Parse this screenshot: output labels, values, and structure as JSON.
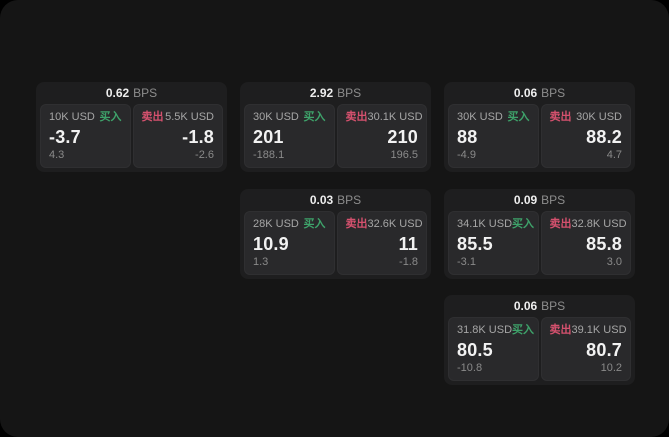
{
  "colors": {
    "buy": "#3EA26A",
    "sell": "#D5516E",
    "window_bg": "#151515",
    "card_bg": "#1e1e1f",
    "panel_bg": "#29292b"
  },
  "cards": [
    {
      "bps_value": "0.62",
      "bps_unit": "BPS",
      "buy": {
        "size": "10K USD",
        "label": "买入",
        "price": "-3.7",
        "change": "4.3"
      },
      "sell": {
        "label": "卖出",
        "size": "5.5K USD",
        "price": "-1.8",
        "change": "-2.6"
      }
    },
    {
      "bps_value": "2.92",
      "bps_unit": "BPS",
      "buy": {
        "size": "30K USD",
        "label": "买入",
        "price": "201",
        "change": "-188.1"
      },
      "sell": {
        "label": "卖出",
        "size": "30.1K USD",
        "price": "210",
        "change": "196.5"
      }
    },
    {
      "bps_value": "0.06",
      "bps_unit": "BPS",
      "buy": {
        "size": "30K USD",
        "label": "买入",
        "price": "88",
        "change": "-4.9"
      },
      "sell": {
        "label": "卖出",
        "size": "30K USD",
        "price": "88.2",
        "change": "4.7"
      }
    },
    {
      "bps_value": "0.03",
      "bps_unit": "BPS",
      "buy": {
        "size": "28K USD",
        "label": "买入",
        "price": "10.9",
        "change": "1.3"
      },
      "sell": {
        "label": "卖出",
        "size": "32.6K USD",
        "price": "11",
        "change": "-1.8"
      }
    },
    {
      "bps_value": "0.09",
      "bps_unit": "BPS",
      "buy": {
        "size": "34.1K USD",
        "label": "买入",
        "price": "85.5",
        "change": "-3.1"
      },
      "sell": {
        "label": "卖出",
        "size": "32.8K USD",
        "price": "85.8",
        "change": "3.0"
      }
    },
    {
      "bps_value": "0.06",
      "bps_unit": "BPS",
      "buy": {
        "size": "31.8K USD",
        "label": "买入",
        "price": "80.5",
        "change": "-10.8"
      },
      "sell": {
        "label": "卖出",
        "size": "39.1K USD",
        "price": "80.7",
        "change": "10.2"
      }
    }
  ]
}
